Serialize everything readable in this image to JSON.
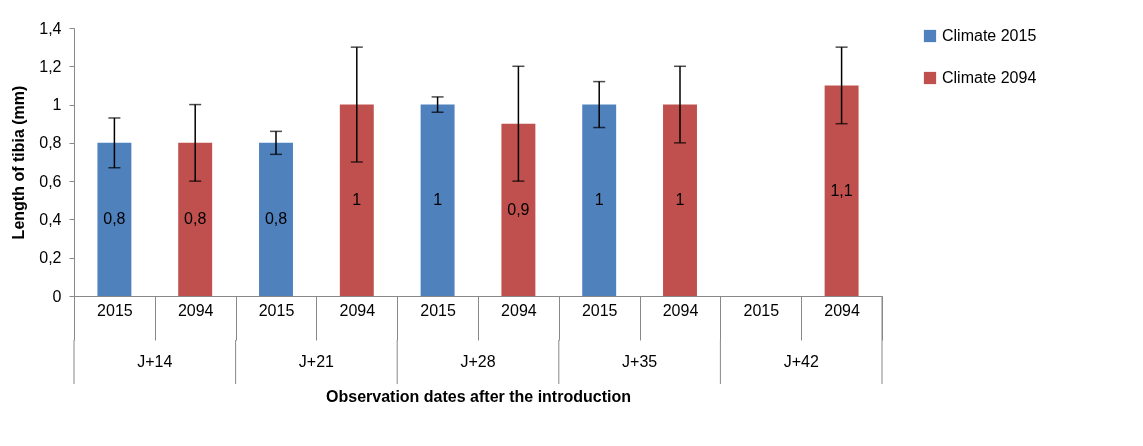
{
  "chart_data": {
    "type": "bar",
    "xlabel": "Observation dates after the introduction",
    "ylabel": "Length of tibia (mm)",
    "categories": [
      "2015",
      "2094",
      "2015",
      "2094",
      "2015",
      "2094",
      "2015",
      "2094",
      "2015",
      "2094"
    ],
    "annotations": [
      "J+14",
      "J+21",
      "J+28",
      "J+35",
      "J+42"
    ],
    "series": [
      {
        "name": "Climate 2015",
        "color": "#4f81bd",
        "values": [
          0.8,
          null,
          0.8,
          null,
          1,
          null,
          1,
          null,
          0,
          null
        ],
        "errors": [
          0.13,
          null,
          0.06,
          null,
          0.04,
          null,
          0.12,
          null,
          null,
          null
        ],
        "value_labels": [
          "0,8",
          null,
          "0,8",
          null,
          "1",
          null,
          "1",
          null,
          null,
          null
        ]
      },
      {
        "name": "Climate 2094",
        "color": "#c0504d",
        "values": [
          null,
          0.8,
          null,
          1,
          null,
          0.9,
          null,
          1,
          null,
          1.1
        ],
        "errors": [
          null,
          0.2,
          null,
          0.3,
          null,
          0.3,
          null,
          0.2,
          null,
          0.2
        ],
        "value_labels": [
          null,
          "0,8",
          null,
          "1",
          null,
          "0,9",
          null,
          "1",
          null,
          "1,1"
        ]
      }
    ],
    "ylim": [
      0,
      1.4
    ],
    "yticks": [
      0,
      {
        "value": 0.2,
        "label": "0,2"
      },
      {
        "value": 0.4,
        "label": "0,4"
      },
      {
        "value": 0.6,
        "label": "0,6"
      },
      {
        "value": 0.8,
        "label": "0,8"
      },
      1,
      {
        "value": 1.2,
        "label": "1,2"
      },
      {
        "value": 1.4,
        "label": "1,4"
      }
    ],
    "grid": false,
    "legend": "right"
  }
}
